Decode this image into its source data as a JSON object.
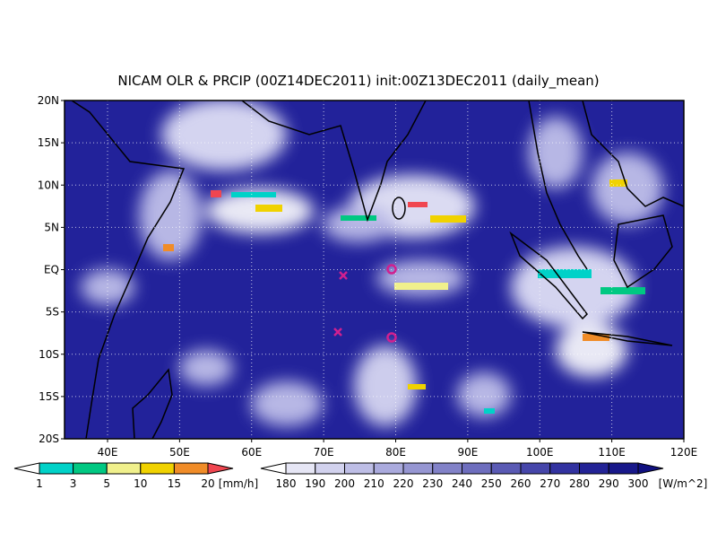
{
  "title": "NICAM OLR & PRCIP (00Z14DEC2011) init:00Z13DEC2011 (daily_mean)",
  "lat_labels": [
    "20N",
    "15N",
    "10N",
    "5N",
    "EQ",
    "5S",
    "10S",
    "15S",
    "20S"
  ],
  "lon_labels": [
    "40E",
    "50E",
    "60E",
    "70E",
    "80E",
    "90E",
    "100E",
    "110E",
    "120E"
  ],
  "precip_colorbar": {
    "labels": [
      1,
      3,
      5,
      10,
      15,
      20
    ],
    "unit": "[mm/h]",
    "colors": [
      "#ffffff",
      "#00d2c8",
      "#00c882",
      "#f0f08c",
      "#f0d200",
      "#f08c28",
      "#f04650"
    ]
  },
  "olr_colorbar": {
    "labels": [
      180,
      190,
      200,
      210,
      220,
      230,
      240,
      250,
      260,
      270,
      280,
      290,
      300
    ],
    "unit": "[W/m^2]",
    "colors": [
      "#ffffff",
      "#e6e6f5",
      "#d2d2ee",
      "#bebee6",
      "#aaaadd",
      "#9696d2",
      "#8282c8",
      "#6e6ebe",
      "#5a5ab4",
      "#4646aa",
      "#3232a0",
      "#232396",
      "#18188a",
      "#101080"
    ]
  }
}
